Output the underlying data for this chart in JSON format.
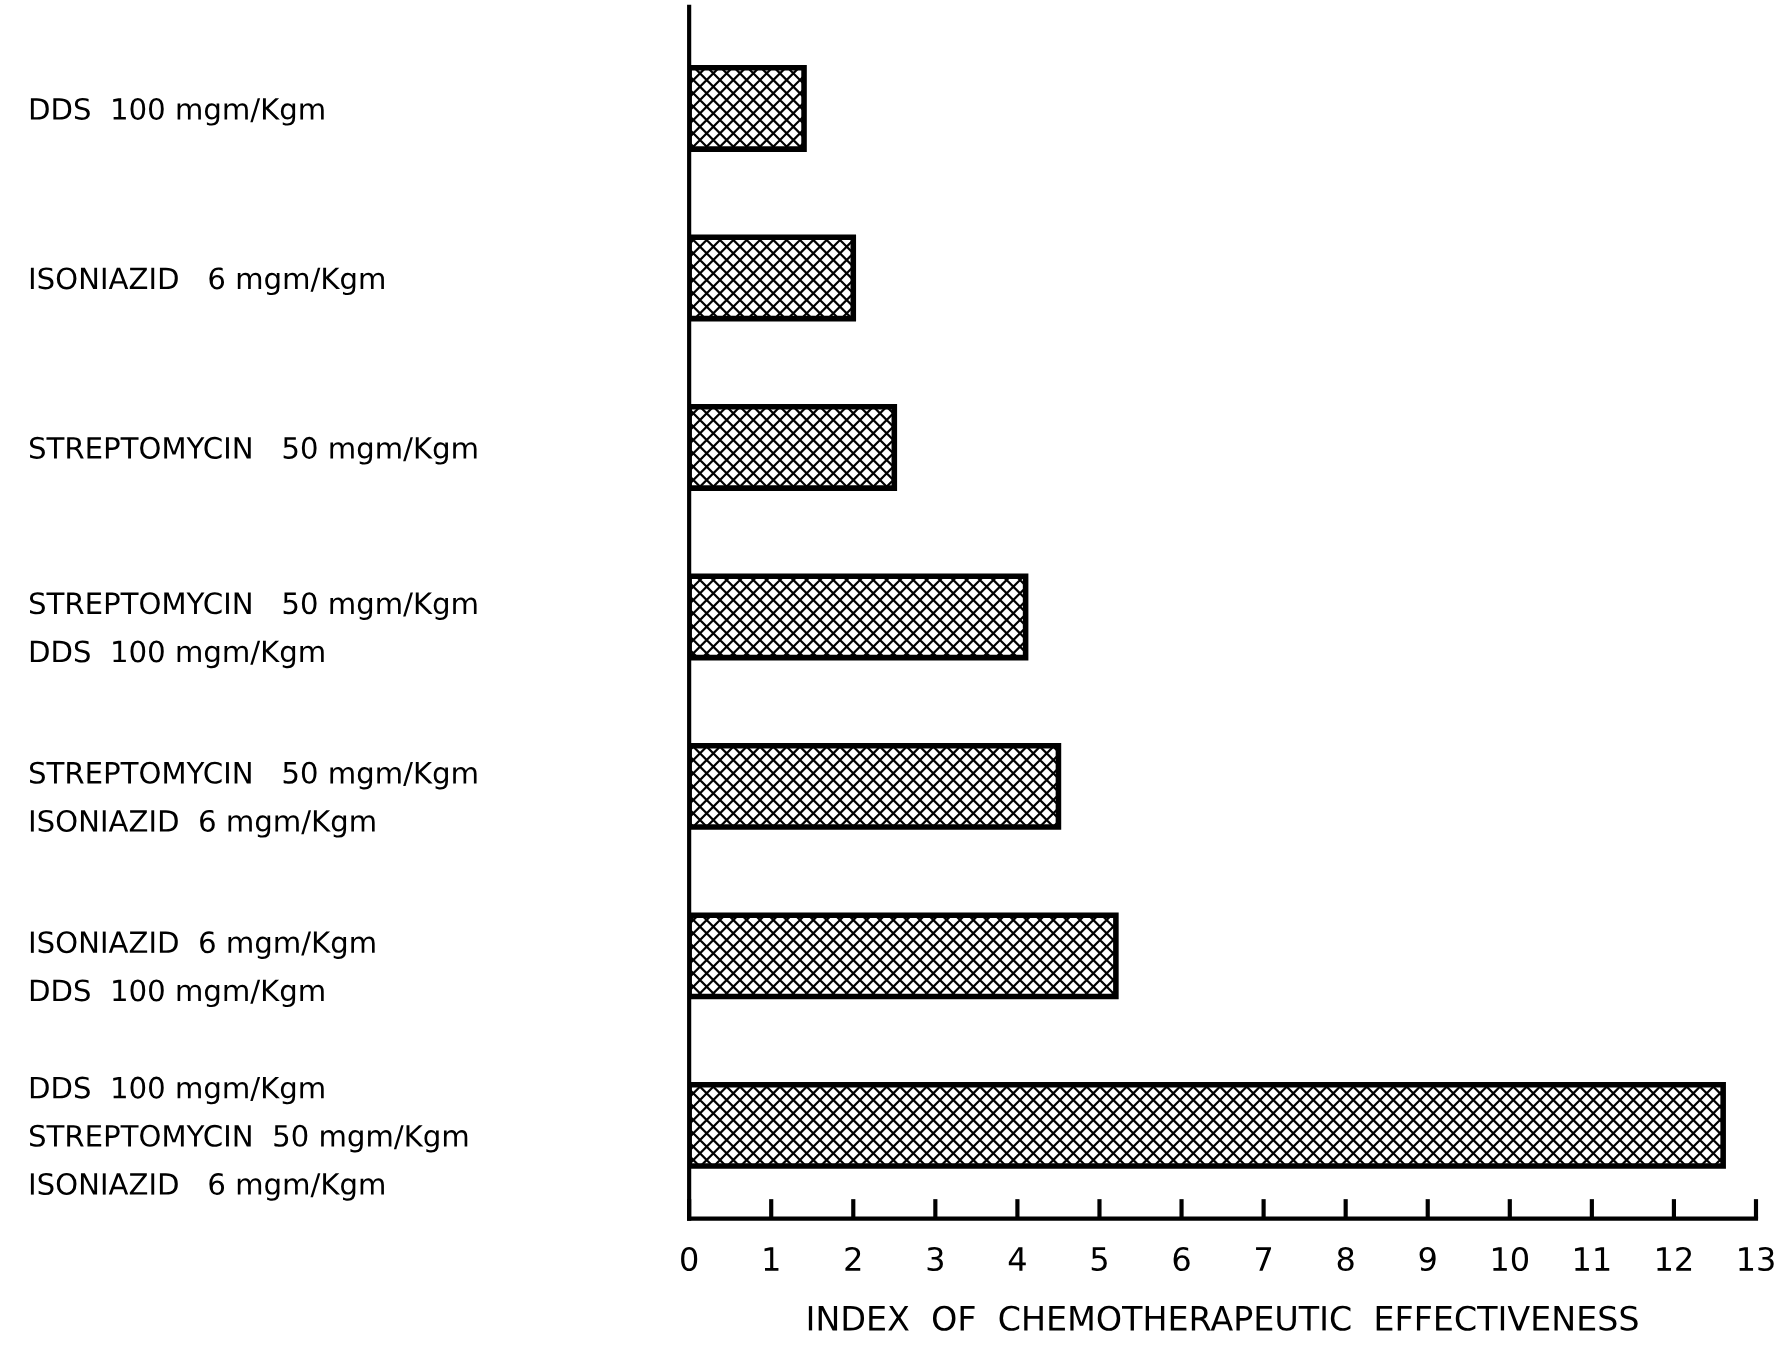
{
  "chart_data": {
    "type": "bar",
    "orientation": "horizontal",
    "categories": [
      "DDS  100 mgm/Kgm",
      "ISONIAZID   6 mgm/Kgm",
      "STREPTOMYCIN   50 mgm/Kgm",
      "STREPTOMYCIN   50 mgm/Kgm\nDDS  100 mgm/Kgm",
      "STREPTOMYCIN   50 mgm/Kgm\nISONIAZID  6 mgm/Kgm",
      "ISONIAZID  6 mgm/Kgm\nDDS  100 mgm/Kgm",
      "DDS  100 mgm/Kgm\nSTREPTOMYCIN  50 mgm/Kgm\nISONIAZID   6 mgm/Kgm"
    ],
    "values": [
      1.4,
      2.0,
      2.5,
      4.1,
      4.5,
      5.2,
      12.6
    ],
    "color": "#000000",
    "xlabel": "INDEX  OF  CHEMOTHERAPEUTIC  EFFECTIVENESS",
    "xlim": [
      0,
      13
    ],
    "xticks": [
      0,
      1,
      2,
      3,
      4,
      5,
      6,
      7,
      8,
      9,
      10,
      11,
      12,
      13
    ],
    "grid": false,
    "legend": false
  }
}
